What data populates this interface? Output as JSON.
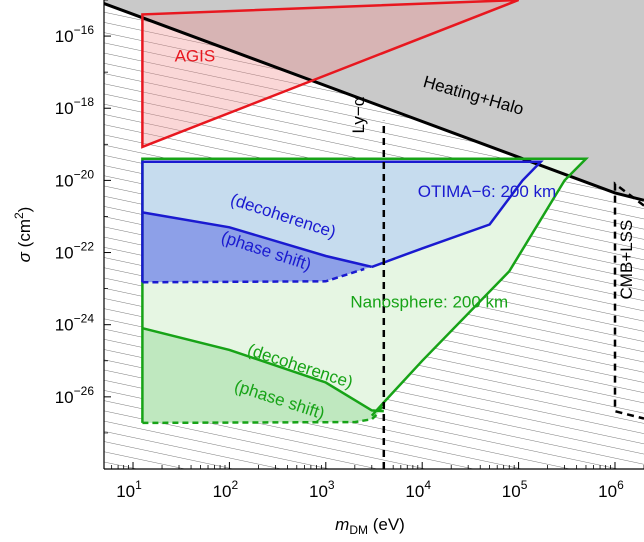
{
  "chart_data": {
    "type": "area",
    "title": "",
    "xlabel_parts": {
      "m": "m",
      "sub": "DM",
      "unit": " (eV)"
    },
    "ylabel_parts": {
      "sigma": "σ",
      "unit": " (cm",
      "sup": "2",
      "close": ")"
    },
    "x_scale": "log",
    "y_scale": "log",
    "xlim": [
      5,
      2000000
    ],
    "ylim": [
      1e-28,
      1e-15
    ],
    "x_ticks": [
      {
        "value": 10,
        "base": "10",
        "exp": "1"
      },
      {
        "value": 100,
        "base": "10",
        "exp": "2"
      },
      {
        "value": 1000,
        "base": "10",
        "exp": "3"
      },
      {
        "value": 10000,
        "base": "10",
        "exp": "4"
      },
      {
        "value": 100000,
        "base": "10",
        "exp": "5"
      },
      {
        "value": 1000000,
        "base": "10",
        "exp": "6"
      }
    ],
    "y_ticks": [
      {
        "value": 1e-16,
        "base": "10",
        "exp": "−16"
      },
      {
        "value": 1e-18,
        "base": "10",
        "exp": "−18"
      },
      {
        "value": 1e-20,
        "base": "10",
        "exp": "−20"
      },
      {
        "value": 1e-22,
        "base": "10",
        "exp": "−22"
      },
      {
        "value": 1e-24,
        "base": "10",
        "exp": "−24"
      },
      {
        "value": 1e-26,
        "base": "10",
        "exp": "−26"
      }
    ],
    "grid": false,
    "regions": [
      {
        "name": "Heating+Halo",
        "type": "excluded",
        "fill": "#c9c9c9",
        "stroke": "#000000",
        "boundary": [
          [
            5,
            8e-16
          ],
          [
            1000000,
            4.5e-21
          ],
          [
            2000000,
            2.8e-21
          ]
        ]
      },
      {
        "name": "AGIS",
        "fill": "#f7c6c6",
        "stroke": "#e8171f",
        "points": [
          [
            12.5,
            8.5e-20
          ],
          [
            12.5,
            4e-16
          ],
          [
            100000,
            1e-15
          ]
        ]
      },
      {
        "name": "Ly−α",
        "stroke": "#000000",
        "style": "dashed",
        "line": [
          [
            4000,
            1e-28
          ],
          [
            4000,
            4.5e-19
          ]
        ]
      },
      {
        "name": "CMB+LSS",
        "stroke": "#000000",
        "style": "dashed",
        "points": [
          [
            2000000,
            2e-21
          ],
          [
            1000000,
            8e-21
          ],
          [
            1000000,
            4e-27
          ],
          [
            2000000,
            2.5e-27
          ]
        ]
      },
      {
        "name": "Nanosphere: 200 km",
        "fill": "#e6f6e3",
        "stroke": "#17a317",
        "points": [
          [
            12.5,
            1.9e-27
          ],
          [
            12.5,
            4e-20
          ],
          [
            500000,
            4e-20
          ],
          [
            300000,
            1e-20
          ],
          [
            80000,
            3e-23
          ],
          [
            10000,
            1e-25
          ],
          [
            4000,
            7e-27
          ],
          [
            3000,
            3e-27
          ],
          [
            12.5,
            1.9e-27
          ]
        ]
      },
      {
        "name": "Nanosphere phase shift",
        "fill": "#bfe8bf",
        "stroke": "#17a317",
        "lower_dashed": [
          [
            12.5,
            1.9e-27
          ],
          [
            2000,
            2e-27
          ],
          [
            3000,
            2.4e-27
          ],
          [
            3500,
            3.5e-27
          ],
          [
            4000,
            7e-27
          ]
        ],
        "upper_solid": [
          [
            12.5,
            8e-25
          ],
          [
            100,
            2e-25
          ],
          [
            1000,
            2.5e-26
          ],
          [
            3000,
            4.2e-27
          ],
          [
            4000,
            4e-27
          ]
        ]
      },
      {
        "name": "OTIMA−6: 200 km",
        "fill": "#c6dcee",
        "stroke": "#1a1ad0",
        "points": [
          [
            12.5,
            1.5e-23
          ],
          [
            12.5,
            3.3e-20
          ],
          [
            170000,
            3.3e-20
          ],
          [
            110000,
            1e-20
          ],
          [
            50000,
            6e-22
          ],
          [
            10000,
            1.3e-22
          ],
          [
            3000,
            4e-23
          ],
          [
            12.5,
            1.5e-23
          ]
        ]
      },
      {
        "name": "OTIMA phase shift",
        "fill": "#8da0e8",
        "stroke": "#1a1ad0",
        "lower_dashed": [
          [
            12.5,
            1.5e-23
          ],
          [
            1000,
            1.6e-23
          ],
          [
            2500,
            3.5e-23
          ]
        ],
        "upper_solid": [
          [
            12.5,
            1.3e-21
          ],
          [
            100,
            5e-22
          ],
          [
            1000,
            8e-23
          ],
          [
            3000,
            4e-23
          ]
        ]
      }
    ],
    "annotations": [
      {
        "text": "AGIS",
        "x": 27,
        "y": 2e-17,
        "color": "#e8171f",
        "rotate": 0
      },
      {
        "text": "Heating+Halo",
        "x": 10000,
        "y": 4e-18,
        "color": "#000000",
        "rotate": 16
      },
      {
        "text": "Ly−α",
        "x": 2500,
        "y": 2e-19,
        "color": "#000000",
        "rotate": -90
      },
      {
        "text": "CMB+LSS",
        "x": 1500000,
        "y": 5e-24,
        "color": "#000000",
        "rotate": -90
      },
      {
        "text": "OTIMA−6: 200 km",
        "x": 9000,
        "y": 3.5e-21,
        "color": "#1a1ad0",
        "rotate": 0
      },
      {
        "text": "(decoherence)",
        "x": 100,
        "y": 2.2e-21,
        "color": "#1a1ad0",
        "rotate": 18
      },
      {
        "text": "(phase shift)",
        "x": 80,
        "y": 2e-22,
        "color": "#1a1ad0",
        "rotate": 18
      },
      {
        "text": "Nanosphere: 200 km",
        "x": 1800,
        "y": 3e-24,
        "color": "#17a317",
        "rotate": 0
      },
      {
        "text": "(decoherence)",
        "x": 150,
        "y": 1.5e-25,
        "color": "#17a317",
        "rotate": 18
      },
      {
        "text": "(phase shift)",
        "x": 110,
        "y": 1.5e-26,
        "color": "#17a317",
        "rotate": 18
      }
    ]
  }
}
